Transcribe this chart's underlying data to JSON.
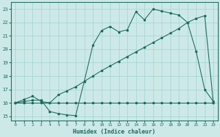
{
  "xlabel": "Humidex (Indice chaleur)",
  "xlim": [
    -0.5,
    23.5
  ],
  "ylim": [
    14.7,
    23.5
  ],
  "yticks": [
    15,
    16,
    17,
    18,
    19,
    20,
    21,
    22,
    23
  ],
  "xticks": [
    0,
    1,
    2,
    3,
    4,
    5,
    6,
    7,
    8,
    9,
    10,
    11,
    12,
    13,
    14,
    15,
    16,
    17,
    18,
    19,
    20,
    21,
    22,
    23
  ],
  "bg_color": "#cce9e8",
  "line_color": "#1a6b5a",
  "grid_color": "#a8d5d3",
  "line1_x": [
    0,
    1,
    2,
    3,
    4,
    5,
    6,
    7,
    8,
    9,
    10,
    11,
    12,
    13,
    14,
    15,
    16,
    17,
    18,
    19,
    20,
    21,
    22,
    23
  ],
  "line1_y": [
    16,
    16,
    16,
    16,
    16,
    16,
    16,
    16,
    16,
    16,
    16,
    16,
    16,
    16,
    16,
    16,
    16,
    16,
    16,
    16,
    16,
    16,
    16,
    16
  ],
  "line2_x": [
    0,
    1,
    2,
    3,
    4,
    5,
    6,
    7,
    8,
    9,
    10,
    11,
    12,
    13,
    14,
    15,
    16,
    17,
    18,
    19,
    20,
    21,
    22,
    23
  ],
  "line2_y": [
    16,
    16.25,
    16.5,
    16.1,
    16.0,
    16.6,
    16.9,
    17.2,
    17.6,
    18.0,
    18.4,
    18.75,
    19.1,
    19.45,
    19.8,
    20.15,
    20.5,
    20.85,
    21.2,
    21.55,
    22.0,
    22.3,
    22.5,
    16
  ],
  "line3_x": [
    0,
    1,
    2,
    3,
    4,
    5,
    6,
    7,
    8,
    9,
    10,
    11,
    12,
    13,
    14,
    15,
    16,
    17,
    18,
    19,
    20,
    21,
    22,
    23
  ],
  "line3_y": [
    16,
    16.1,
    16.2,
    16.2,
    15.35,
    15.2,
    15.1,
    15.05,
    17.6,
    20.3,
    21.4,
    21.7,
    21.3,
    21.45,
    22.8,
    22.2,
    23.0,
    22.85,
    22.7,
    22.55,
    22.0,
    19.85,
    17.0,
    16.1
  ]
}
